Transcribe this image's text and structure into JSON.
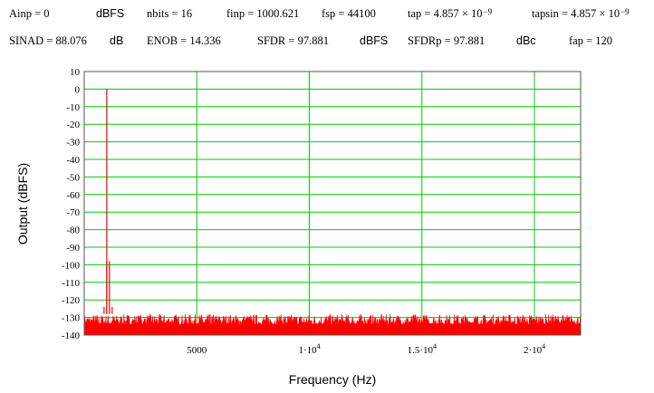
{
  "params": {
    "row1": [
      {
        "key": "ainp",
        "text": "Ainp = 0"
      },
      {
        "key": "ainp_unit",
        "text": "dBFS"
      },
      {
        "key": "nbits",
        "text": "nbits = 16"
      },
      {
        "key": "finp",
        "text": "finp = 1000.621"
      },
      {
        "key": "fsp",
        "text": "fsp = 44100"
      },
      {
        "key": "tap",
        "text": "tap = 4.857 × 10",
        "exp": "−9"
      },
      {
        "key": "tapsin",
        "text": "tapsin = 4.857 × 10",
        "exp": "−9"
      }
    ],
    "row2": [
      {
        "key": "sinad",
        "text": "SINAD = 88.076"
      },
      {
        "key": "sinad_unit",
        "text": "dB"
      },
      {
        "key": "enob",
        "text": "ENOB = 14.336"
      },
      {
        "key": "sfdr",
        "text": "SFDR = 97.881"
      },
      {
        "key": "sfdr_unit",
        "text": "dBFS"
      },
      {
        "key": "sfdrp",
        "text": "SFDRp = 97.881"
      },
      {
        "key": "sfdrp_unit",
        "text": "dBc"
      },
      {
        "key": "fap",
        "text": "fap = 120"
      }
    ]
  },
  "chart_data": {
    "type": "line",
    "xlabel": "Frequency (Hz)",
    "ylabel": "Output (dBFS)",
    "xlim": [
      0,
      22050
    ],
    "ylim": [
      -140,
      10
    ],
    "y_ticks": [
      10,
      0,
      -10,
      -20,
      -30,
      -40,
      -50,
      -60,
      -70,
      -80,
      -90,
      -100,
      -110,
      -120,
      -130,
      -140
    ],
    "x_ticks": [
      {
        "value": 5000,
        "label": "5000"
      },
      {
        "value": 10000,
        "label": "1·10",
        "exp": "4"
      },
      {
        "value": 15000,
        "label": "1.5·10",
        "exp": "4"
      },
      {
        "value": 20000,
        "label": "2·10",
        "exp": "4"
      }
    ],
    "grid": true,
    "grid_color": "#00cc00",
    "series_color": "#ff0000",
    "noise_floor_range": [
      -139,
      -128
    ],
    "peaks": [
      {
        "x": 1000.6,
        "y": 0
      },
      {
        "x": 1000.6,
        "y": -97.9
      },
      {
        "x": 1120,
        "y": -97.9
      },
      {
        "x": 880,
        "y": -124
      },
      {
        "x": 1240,
        "y": -124
      }
    ]
  }
}
